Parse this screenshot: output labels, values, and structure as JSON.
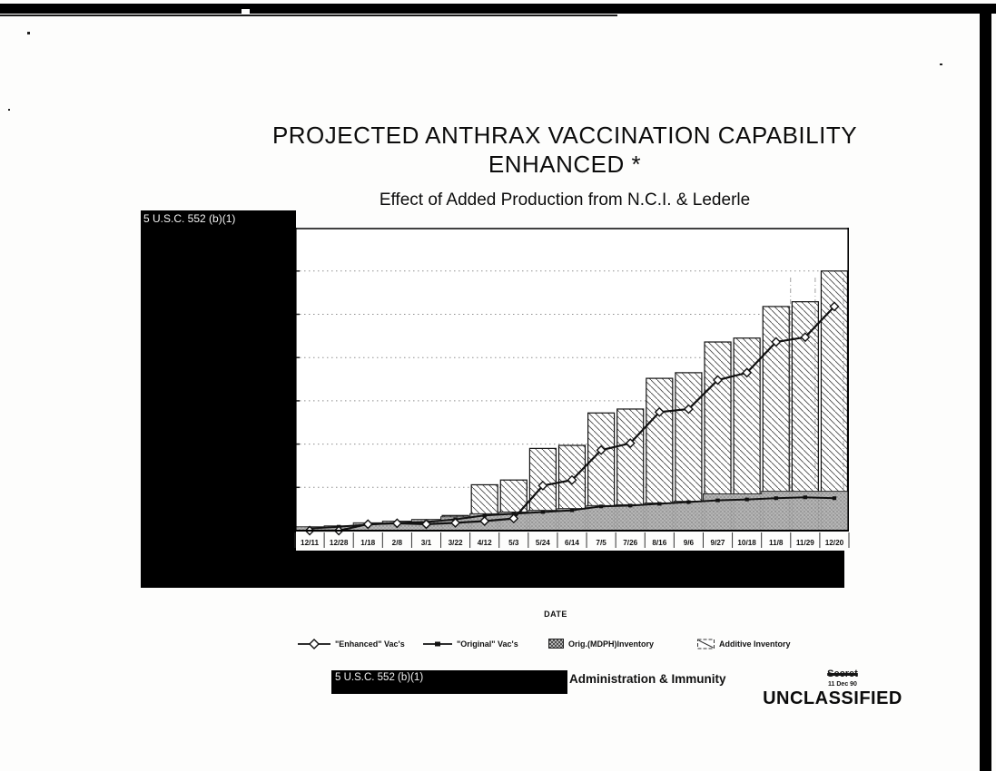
{
  "title": {
    "line1": "PROJECTED ANTHRAX VACCINATION CAPABILITY",
    "line2": "ENHANCED *",
    "subtitle": "Effect of Added Production from N.C.I. & Lederle"
  },
  "redactions": {
    "left_box_label": "5 U.S.C. 552 (b)(1)",
    "footer_bar_label": "5 U.S.C. 552 (b)(1)"
  },
  "footer": {
    "caption": "Administration & Immunity"
  },
  "stamps": {
    "struck_classification": "Secret",
    "date": "11 Dec 90",
    "classification": "UNCLASSIFIED"
  },
  "chart_data": {
    "type": "combo: bar + area + line",
    "title": "PROJECTED ANTHRAX VACCINATION CAPABILITY ENHANCED *",
    "subtitle": "Effect of Added Production from N.C.I. & Lederle",
    "xlabel": "DATE",
    "ylabel": "",
    "y_axis_labels": "redacted (hidden behind 5 U.S.C. 552 (b)(1) box)",
    "y_units_note": "values estimated in gridline units; 1.0 = one horizontal gridline interval, 7 intervals to top of plot",
    "ylim": [
      0,
      7
    ],
    "grid": "horizontal dotted gridlines at 1-6",
    "legend_position": "bottom",
    "categories": [
      "12/11",
      "12/28",
      "1/18",
      "2/8",
      "3/1",
      "3/22",
      "4/12",
      "5/3",
      "5/24",
      "6/14",
      "7/5",
      "7/26",
      "8/16",
      "9/6",
      "9/27",
      "10/18",
      "11/8",
      "11/29",
      "12/20"
    ],
    "series": [
      {
        "name": "\"Enhanced\" Vac's",
        "type": "line",
        "marker": "open-diamond",
        "color": "#111111",
        "values": [
          0,
          0,
          0.15,
          0.17,
          0.15,
          0.18,
          0.22,
          0.28,
          1.04,
          1.17,
          1.86,
          2.02,
          2.74,
          2.81,
          3.48,
          3.65,
          4.36,
          4.47,
          5.18
        ]
      },
      {
        "name": "\"Original\" Vac's",
        "type": "line",
        "marker": "filled-square",
        "color": "#111111",
        "values": [
          0.05,
          0.09,
          0.14,
          0.18,
          0.2,
          0.26,
          0.35,
          0.39,
          0.43,
          0.47,
          0.56,
          0.58,
          0.62,
          0.66,
          0.7,
          0.72,
          0.75,
          0.77,
          0.75
        ]
      },
      {
        "name": "Orig.(MDPH)Inventory",
        "type": "area",
        "pattern": "gray-stipple",
        "color": "#b2b2b2",
        "values": [
          0.09,
          0.11,
          0.18,
          0.22,
          0.26,
          0.32,
          0.39,
          0.43,
          0.47,
          0.51,
          0.58,
          0.6,
          0.64,
          0.68,
          0.85,
          0.85,
          0.91,
          0.91,
          0.91
        ]
      },
      {
        "name": "Additive Inventory",
        "type": "bar",
        "pattern": "diagonal-hatch",
        "color": "#ffffff",
        "values": [
          0,
          0,
          0,
          0,
          0,
          0.35,
          1.06,
          1.17,
          1.9,
          1.97,
          2.72,
          2.81,
          3.52,
          3.65,
          4.36,
          4.45,
          5.18,
          5.29,
          6.0
        ]
      }
    ]
  }
}
